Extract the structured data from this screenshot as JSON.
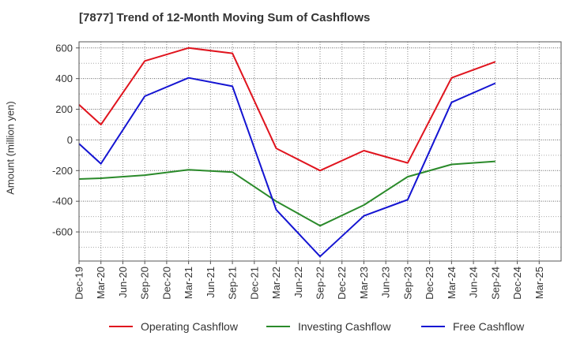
{
  "chart_data": {
    "type": "line",
    "title": "[7877]  Trend of 12-Month Moving Sum of Cashflows",
    "xlabel": "",
    "ylabel": "Amount (million yen)",
    "ylim": [
      -790,
      640
    ],
    "yticks": [
      600,
      400,
      200,
      0,
      -200,
      -400,
      -600
    ],
    "ytick_labels": [
      "600",
      "400",
      "200",
      "0",
      "-200",
      "-400",
      "-600"
    ],
    "categories": [
      "Dec-19",
      "Mar-20",
      "Jun-20",
      "Sep-20",
      "Dec-20",
      "Mar-21",
      "Jun-21",
      "Sep-21",
      "Dec-21",
      "Mar-22",
      "Jun-22",
      "Sep-22",
      "Dec-22",
      "Mar-23",
      "Jun-23",
      "Sep-23",
      "Dec-23",
      "Mar-24",
      "Jun-24",
      "Sep-24",
      "Dec-24",
      "Mar-25"
    ],
    "grid": true,
    "legend_position": "bottom",
    "series": [
      {
        "name": "Operating Cashflow",
        "color": "#e0141e",
        "values": [
          230,
          100,
          null,
          515,
          null,
          600,
          null,
          565,
          null,
          -55,
          null,
          -200,
          null,
          -70,
          null,
          -150,
          null,
          405,
          null,
          510,
          null,
          null
        ]
      },
      {
        "name": "Investing Cashflow",
        "color": "#2a8a2a",
        "values": [
          -255,
          -250,
          null,
          -230,
          null,
          -195,
          null,
          -210,
          null,
          -400,
          null,
          -560,
          null,
          -425,
          null,
          -240,
          null,
          -160,
          null,
          -140,
          null,
          null
        ]
      },
      {
        "name": "Free Cashflow",
        "color": "#1414d2",
        "values": [
          -25,
          -155,
          null,
          285,
          null,
          405,
          null,
          350,
          null,
          -455,
          null,
          -760,
          null,
          -495,
          null,
          -390,
          null,
          245,
          null,
          370,
          null,
          null
        ]
      }
    ]
  }
}
